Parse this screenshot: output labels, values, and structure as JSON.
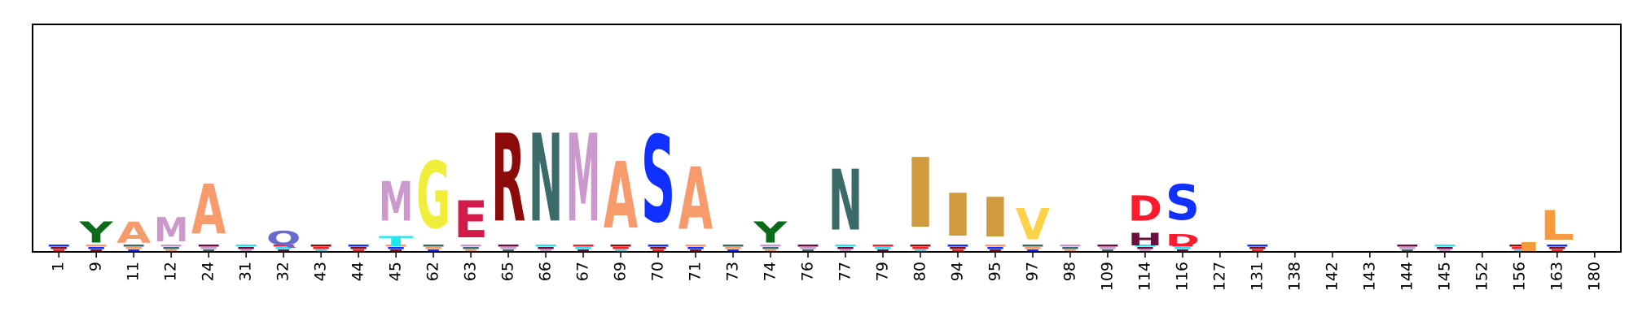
{
  "chart_data": {
    "type": "sequence-logo",
    "title": "",
    "xlabel": "",
    "ylabel": "",
    "ylim": [
      0,
      1
    ],
    "grid": false,
    "positions": [
      "1",
      "9",
      "11",
      "12",
      "24",
      "31",
      "32",
      "43",
      "44",
      "45",
      "62",
      "63",
      "65",
      "66",
      "67",
      "69",
      "70",
      "71",
      "73",
      "74",
      "76",
      "77",
      "79",
      "80",
      "94",
      "95",
      "97",
      "98",
      "109",
      "114",
      "116",
      "127",
      "131",
      "138",
      "142",
      "143",
      "144",
      "145",
      "152",
      "156",
      "163",
      "180"
    ],
    "letters": [
      {
        "pos": "9",
        "letter": "Y",
        "color": "#0b6b1a",
        "value": 0.15
      },
      {
        "pos": "11",
        "letter": "A",
        "color": "#f89b6c",
        "value": 0.15
      },
      {
        "pos": "12",
        "letter": "M",
        "color": "#cc99cc",
        "value": 0.17
      },
      {
        "pos": "24",
        "letter": "A",
        "color": "#f89b6c",
        "value": 0.35
      },
      {
        "pos": "32",
        "letter": "Q",
        "color": "#6a6acc",
        "value": 0.1
      },
      {
        "pos": "45",
        "letter": "T",
        "color": "#22e5ee",
        "value": 0.07
      },
      {
        "pos": "45",
        "letter": "M",
        "color": "#cc99cc",
        "value": 0.28
      },
      {
        "pos": "62",
        "letter": "G",
        "color": "#f0ee3a",
        "value": 0.47
      },
      {
        "pos": "63",
        "letter": "E",
        "color": "#d41a4a",
        "value": 0.26
      },
      {
        "pos": "65",
        "letter": "R",
        "color": "#8b0a0a",
        "value": 0.62
      },
      {
        "pos": "66",
        "letter": "N",
        "color": "#3a6b68",
        "value": 0.62
      },
      {
        "pos": "67",
        "letter": "M",
        "color": "#cc99cc",
        "value": 0.62
      },
      {
        "pos": "69",
        "letter": "A",
        "color": "#f89b6c",
        "value": 0.47
      },
      {
        "pos": "70",
        "letter": "S",
        "color": "#1030ff",
        "value": 0.61
      },
      {
        "pos": "71",
        "letter": "A",
        "color": "#f89b6c",
        "value": 0.44
      },
      {
        "pos": "74",
        "letter": "Y",
        "color": "#0b6b1a",
        "value": 0.15
      },
      {
        "pos": "77",
        "letter": "N",
        "color": "#3a6b68",
        "value": 0.43
      },
      {
        "pos": "80",
        "letter": "I",
        "color": "#d09a3e",
        "value": 0.49
      },
      {
        "pos": "94",
        "letter": "I",
        "color": "#d09a3e",
        "value": 0.3
      },
      {
        "pos": "95",
        "letter": "I",
        "color": "#d09a3e",
        "value": 0.28
      },
      {
        "pos": "97",
        "letter": "V",
        "color": "#ffd24a",
        "value": 0.22
      },
      {
        "pos": "114",
        "letter": "H",
        "color": "#6a0f40",
        "value": 0.09
      },
      {
        "pos": "114",
        "letter": "D",
        "color": "#ff1b2d",
        "value": 0.18
      },
      {
        "pos": "116",
        "letter": "D",
        "color": "#ff1b2d",
        "value": 0.08
      },
      {
        "pos": "116",
        "letter": "S",
        "color": "#1030ff",
        "value": 0.25
      },
      {
        "pos": "163",
        "letter": "L",
        "color": "#f79a3e",
        "value": 0.21
      }
    ]
  }
}
